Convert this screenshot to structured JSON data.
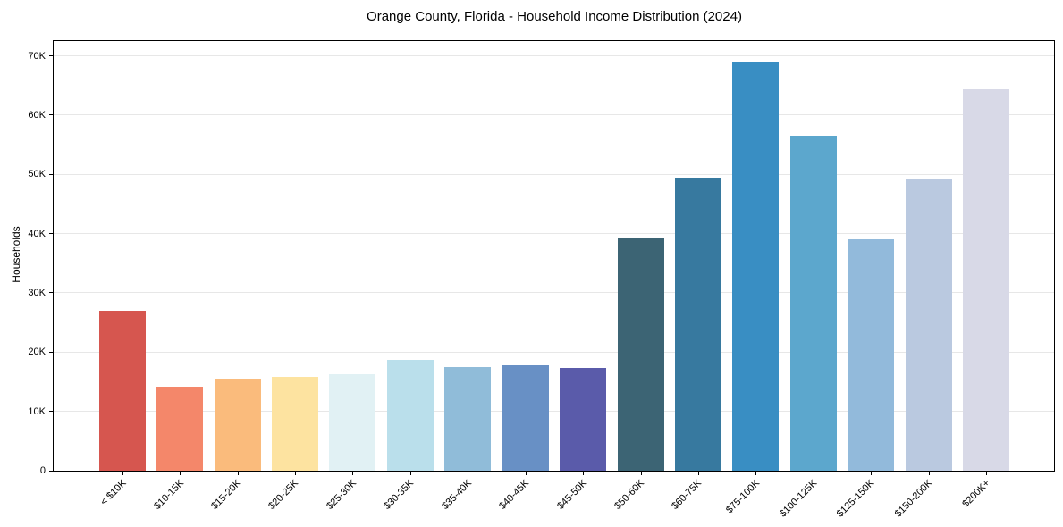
{
  "chart_data": {
    "type": "bar",
    "title": "Orange County, Florida - Household Income Distribution (2024)",
    "xlabel": "",
    "ylabel": "Households",
    "categories": [
      "< $10K",
      "$10-15K",
      "$15-20K",
      "$20-25K",
      "$25-30K",
      "$30-35K",
      "$35-40K",
      "$40-45K",
      "$45-50K",
      "$50-60K",
      "$60-75K",
      "$75-100K",
      "$100-125K",
      "$125-150K",
      "$150-200K",
      "$200K+"
    ],
    "values": [
      27000,
      14200,
      15600,
      15900,
      16300,
      18700,
      17500,
      17800,
      17400,
      39400,
      49500,
      69000,
      56500,
      39100,
      49300,
      64300
    ],
    "bar_colors": [
      "#d6564f",
      "#f4876a",
      "#fabb7c",
      "#fde3a0",
      "#e1f1f4",
      "#badfeb",
      "#90bcd9",
      "#6890c5",
      "#5a5baa",
      "#3c6474",
      "#37799f",
      "#398ec3",
      "#5ca7cd",
      "#92badb",
      "#bac9e0",
      "#d8d9e7"
    ],
    "ylim": [
      0,
      72500
    ],
    "ytick_values": [
      0,
      10000,
      20000,
      30000,
      40000,
      50000,
      60000,
      70000
    ],
    "ytick_labels": [
      "0",
      "10K",
      "20K",
      "30K",
      "40K",
      "50K",
      "60K",
      "70K"
    ],
    "grid": "horizontal",
    "legend_position": "none",
    "background_color": "#ffffff",
    "gridline_color": "#e7e7e7",
    "axis_color": "#000000"
  }
}
